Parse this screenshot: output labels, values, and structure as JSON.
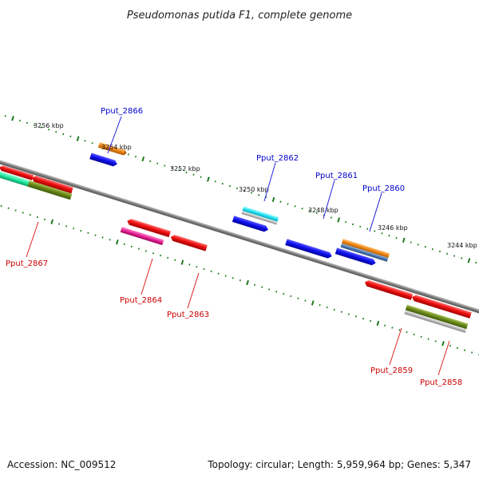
{
  "title": "Pseudomonas putida F1, complete genome",
  "footer": {
    "accession": "Accession: NC_009512",
    "topology": "Topology: circular; Length: 5,959,964 bp; Genes: 5,347"
  },
  "kbp_labels": [
    "3256 kbp",
    "3254 kbp",
    "3252 kbp",
    "3250 kbp",
    "3248 kbp",
    "3246 kbp",
    "3244 kbp"
  ],
  "gene_labels": [
    "Pput_2866",
    "Pput_2862",
    "Pput_2861",
    "Pput_2860",
    "Pput_2867",
    "Pput_2864",
    "Pput_2863",
    "Pput_2859",
    "Pput_2858"
  ],
  "colors": {
    "red": "#ee1111",
    "blue": "#1111ee",
    "orange": "#f28a1a",
    "cyan": "#22e0f0",
    "olive": "#6b8a1c",
    "magenta": "#e8289a",
    "backbone": "#8a8a8a",
    "ticks": "#1e7a1e"
  }
}
